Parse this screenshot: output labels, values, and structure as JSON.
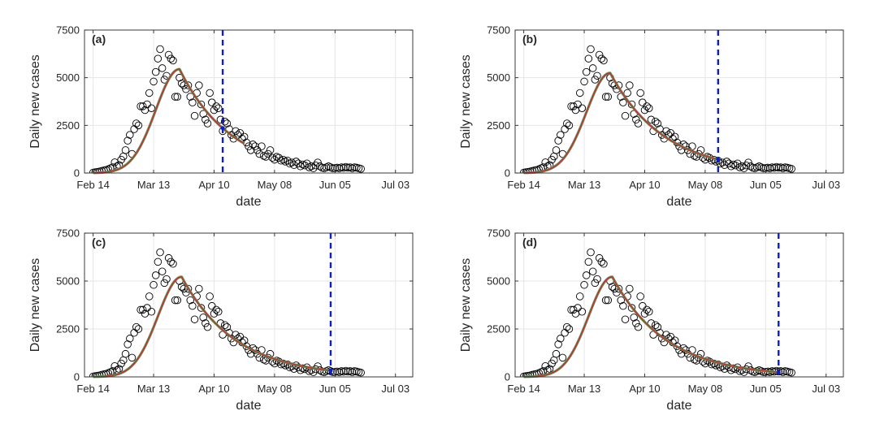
{
  "chart_data": [
    {
      "type": "scatter",
      "panel_label": "(a)",
      "xlabel": "date",
      "ylabel": "Daily new cases",
      "x_ticks": [
        "Feb 14",
        "Mar 13",
        "Apr 10",
        "May 08",
        "Jun 05",
        "Jul 03"
      ],
      "x_tick_days": [
        0,
        28,
        56,
        84,
        112,
        140
      ],
      "y_ticks": [
        "0",
        "2500",
        "5000",
        "7500"
      ],
      "ylim": [
        0,
        7500
      ],
      "grid": true,
      "cutoff_day": 60,
      "fit_end_day": 70
    },
    {
      "type": "scatter",
      "panel_label": "(b)",
      "xlabel": "date",
      "ylabel": "Daily new cases",
      "x_ticks": [
        "Feb 14",
        "Mar 13",
        "Apr 10",
        "May 08",
        "Jun 05",
        "Jul 03"
      ],
      "x_tick_days": [
        0,
        28,
        56,
        84,
        112,
        140
      ],
      "y_ticks": [
        "0",
        "2500",
        "5000",
        "7500"
      ],
      "ylim": [
        0,
        7500
      ],
      "grid": true,
      "cutoff_day": 90,
      "fit_end_day": 90
    },
    {
      "type": "scatter",
      "panel_label": "(c)",
      "xlabel": "date",
      "ylabel": "Daily new cases",
      "x_ticks": [
        "Feb 14",
        "Mar 13",
        "Apr 10",
        "May 08",
        "Jun 05",
        "Jul 03"
      ],
      "x_tick_days": [
        0,
        28,
        56,
        84,
        112,
        140
      ],
      "y_ticks": [
        "0",
        "2500",
        "5000",
        "7500"
      ],
      "ylim": [
        0,
        7500
      ],
      "grid": true,
      "cutoff_day": 110,
      "fit_end_day": 110
    },
    {
      "type": "scatter",
      "panel_label": "(d)",
      "xlabel": "date",
      "ylabel": "Daily new cases",
      "x_ticks": [
        "Feb 14",
        "Mar 13",
        "Apr 10",
        "May 08",
        "Jun 05",
        "Jul 03"
      ],
      "x_tick_days": [
        0,
        28,
        56,
        84,
        112,
        140
      ],
      "y_ticks": [
        "0",
        "2500",
        "5000",
        "7500"
      ],
      "ylim": [
        0,
        7500
      ],
      "grid": true,
      "cutoff_day": 118,
      "fit_end_day": 118
    }
  ],
  "observed": {
    "days": [
      0,
      1,
      2,
      3,
      4,
      5,
      6,
      7,
      8,
      9,
      10,
      11,
      12,
      13,
      14,
      15,
      16,
      17,
      18,
      19,
      20,
      21,
      22,
      23,
      24,
      25,
      26,
      27,
      28,
      29,
      30,
      31,
      32,
      33,
      34,
      35,
      36,
      37,
      38,
      39,
      40,
      41,
      42,
      43,
      44,
      45,
      46,
      47,
      48,
      49,
      50,
      51,
      52,
      53,
      54,
      55,
      56,
      57,
      58,
      59,
      60,
      61,
      62,
      63,
      64,
      65,
      66,
      67,
      68,
      69,
      70,
      71,
      72,
      73,
      74,
      75,
      76,
      77,
      78,
      79,
      80,
      81,
      82,
      83,
      84,
      85,
      86,
      87,
      88,
      89,
      90,
      91,
      92,
      93,
      94,
      95,
      96,
      97,
      98,
      99,
      100,
      101,
      102,
      103,
      104,
      105,
      106,
      107,
      108,
      109,
      110,
      111,
      112,
      113,
      114,
      115,
      116,
      117,
      118,
      119,
      120,
      121,
      122,
      123,
      124
    ],
    "cases": [
      20,
      40,
      60,
      80,
      110,
      140,
      160,
      200,
      250,
      300,
      560,
      350,
      420,
      700,
      870,
      1200,
      1700,
      2000,
      1000,
      2300,
      2600,
      2500,
      3500,
      3500,
      3300,
      3600,
      4200,
      3400,
      4800,
      5300,
      6000,
      6500,
      5500,
      4900,
      5100,
      6200,
      6000,
      5900,
      4000,
      4000,
      5000,
      4700,
      4600,
      4400,
      4600,
      4000,
      3700,
      3000,
      4200,
      4600,
      3600,
      3100,
      2800,
      2600,
      4200,
      3700,
      3300,
      3500,
      3400,
      2800,
      2200,
      2700,
      2600,
      2300,
      2000,
      1800,
      2200,
      2000,
      2100,
      1800,
      1900,
      1600,
      1400,
      1200,
      1500,
      1400,
      1200,
      1000,
      1400,
      900,
      850,
      1000,
      1200,
      800,
      700,
      850,
      800,
      650,
      700,
      600,
      650,
      500,
      550,
      420,
      600,
      500,
      350,
      450,
      400,
      500,
      300,
      350,
      250,
      400,
      550,
      350,
      280,
      250,
      300,
      350,
      300,
      250,
      260,
      280,
      250,
      300,
      270,
      320,
      280,
      300,
      250,
      300,
      280,
      250,
      220
    ]
  },
  "fit_model": {
    "a_peak": [
      5450,
      5250,
      5220,
      5220
    ],
    "peak_day": [
      40,
      40,
      41,
      41
    ],
    "rise_sigma": 11,
    "decay_rate": [
      0.042,
      0.04,
      0.04,
      0.04
    ]
  },
  "colors": {
    "marker_edge": "#000000",
    "fit_red": "#d62728",
    "fit_green": "#3a9a2a",
    "fit_grey": "#888888",
    "cutoff_line": "#0a1fd4",
    "grid": "#e6e6e6",
    "axis": "#262626"
  }
}
